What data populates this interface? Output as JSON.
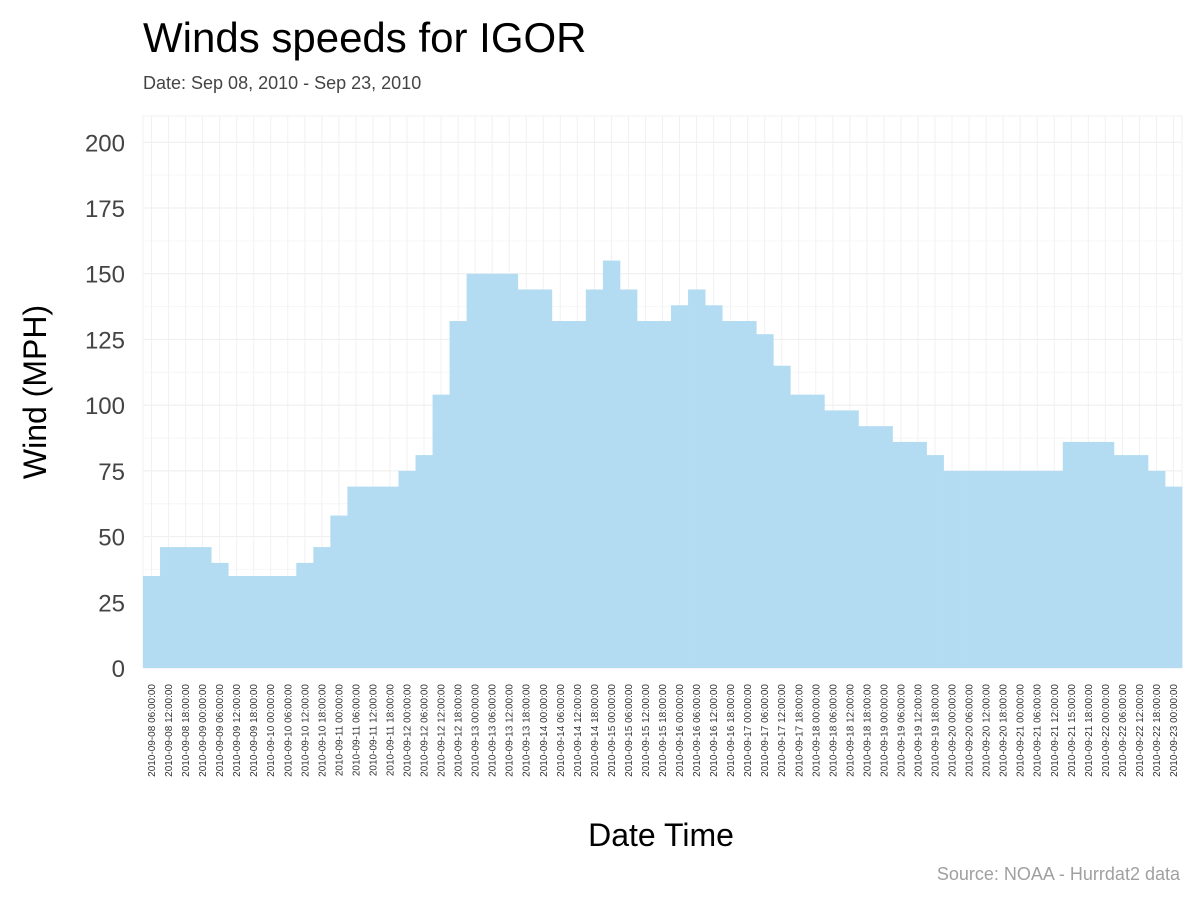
{
  "chart_data": {
    "type": "bar",
    "title": "Winds speeds for IGOR",
    "subtitle": "Date:  Sep 08, 2010 - Sep 23, 2010",
    "xlabel": "Date Time",
    "ylabel": "Wind (MPH)",
    "caption": "Source: NOAA - Hurrdat2 data",
    "ylim": [
      0,
      210
    ],
    "yticks": [
      0,
      25,
      50,
      75,
      100,
      125,
      150,
      175,
      200
    ],
    "grid": true,
    "bar_color": "#b3dcf2",
    "categories": [
      "2010-09-08 06:00:00",
      "2010-09-08 12:00:00",
      "2010-09-08 18:00:00",
      "2010-09-09 00:00:00",
      "2010-09-09 06:00:00",
      "2010-09-09 12:00:00",
      "2010-09-09 18:00:00",
      "2010-09-10 00:00:00",
      "2010-09-10 06:00:00",
      "2010-09-10 12:00:00",
      "2010-09-10 18:00:00",
      "2010-09-11 00:00:00",
      "2010-09-11 06:00:00",
      "2010-09-11 12:00:00",
      "2010-09-11 18:00:00",
      "2010-09-12 00:00:00",
      "2010-09-12 06:00:00",
      "2010-09-12 12:00:00",
      "2010-09-12 18:00:00",
      "2010-09-13 00:00:00",
      "2010-09-13 06:00:00",
      "2010-09-13 12:00:00",
      "2010-09-13 18:00:00",
      "2010-09-14 00:00:00",
      "2010-09-14 06:00:00",
      "2010-09-14 12:00:00",
      "2010-09-14 18:00:00",
      "2010-09-15 00:00:00",
      "2010-09-15 06:00:00",
      "2010-09-15 12:00:00",
      "2010-09-15 18:00:00",
      "2010-09-16 00:00:00",
      "2010-09-16 06:00:00",
      "2010-09-16 12:00:00",
      "2010-09-16 18:00:00",
      "2010-09-17 00:00:00",
      "2010-09-17 06:00:00",
      "2010-09-17 12:00:00",
      "2010-09-17 18:00:00",
      "2010-09-18 00:00:00",
      "2010-09-18 06:00:00",
      "2010-09-18 12:00:00",
      "2010-09-18 18:00:00",
      "2010-09-19 00:00:00",
      "2010-09-19 06:00:00",
      "2010-09-19 12:00:00",
      "2010-09-19 18:00:00",
      "2010-09-20 00:00:00",
      "2010-09-20 06:00:00",
      "2010-09-20 12:00:00",
      "2010-09-20 18:00:00",
      "2010-09-21 00:00:00",
      "2010-09-21 06:00:00",
      "2010-09-21 12:00:00",
      "2010-09-21 15:00:00",
      "2010-09-21 18:00:00",
      "2010-09-22 00:00:00",
      "2010-09-22 06:00:00",
      "2010-09-22 12:00:00",
      "2010-09-22 18:00:00",
      "2010-09-23 00:00:00"
    ],
    "values": [
      35,
      46,
      46,
      46,
      40,
      35,
      35,
      35,
      35,
      40,
      46,
      58,
      69,
      69,
      69,
      75,
      81,
      104,
      132,
      150,
      150,
      150,
      144,
      144,
      132,
      132,
      144,
      155,
      144,
      132,
      132,
      138,
      144,
      138,
      132,
      132,
      127,
      115,
      104,
      104,
      98,
      98,
      92,
      92,
      86,
      86,
      81,
      75,
      75,
      75,
      75,
      75,
      75,
      75,
      86,
      86,
      86,
      81,
      81,
      75,
      69
    ]
  }
}
